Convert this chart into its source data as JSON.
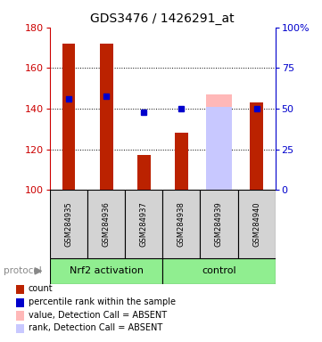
{
  "title": "GDS3476 / 1426291_at",
  "samples": [
    "GSM284935",
    "GSM284936",
    "GSM284937",
    "GSM284938",
    "GSM284939",
    "GSM284940"
  ],
  "bar_bottom": 100,
  "red_bar_tops": [
    172,
    172,
    117,
    128,
    100,
    143
  ],
  "pink_bar_tops": [
    null,
    null,
    null,
    null,
    147,
    null
  ],
  "light_blue_tops": [
    null,
    null,
    null,
    null,
    141,
    null
  ],
  "blue_dot_y": [
    145,
    146,
    138,
    140,
    null,
    140
  ],
  "ylim": [
    100,
    180
  ],
  "y_ticks_left": [
    100,
    120,
    140,
    160,
    180
  ],
  "y_ticks_right": [
    0,
    25,
    50,
    75,
    100
  ],
  "right_axis_color": "#0000cc",
  "left_axis_color": "#cc0000",
  "bar_color_red": "#bb2200",
  "bar_color_pink": "#ffb8b8",
  "bar_color_light_blue": "#c8c8ff",
  "dot_color_blue": "#0000cc",
  "group1_label": "Nrf2 activation",
  "group2_label": "control",
  "group_bg_color": "#90EE90",
  "sample_bg_color": "#d3d3d3",
  "legend_items": [
    {
      "color": "#bb2200",
      "label": "count"
    },
    {
      "color": "#0000cc",
      "label": "percentile rank within the sample"
    },
    {
      "color": "#ffb8b8",
      "label": "value, Detection Call = ABSENT"
    },
    {
      "color": "#c8c8ff",
      "label": "rank, Detection Call = ABSENT"
    }
  ],
  "protocol_label": "protocol",
  "bar_width": 0.35,
  "wide_bar_width": 0.7
}
